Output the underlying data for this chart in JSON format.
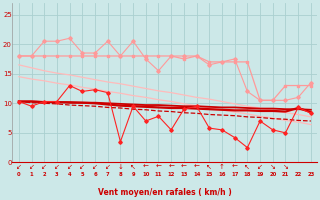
{
  "x": [
    0,
    1,
    2,
    3,
    4,
    5,
    6,
    7,
    8,
    9,
    10,
    11,
    12,
    13,
    14,
    15,
    16,
    17,
    18,
    19,
    20,
    21,
    22,
    23
  ],
  "line_flat_dark": [
    10.3,
    10.3,
    10.2,
    10.2,
    10.2,
    10.1,
    10.1,
    10.0,
    9.9,
    9.8,
    9.7,
    9.7,
    9.6,
    9.5,
    9.5,
    9.4,
    9.3,
    9.3,
    9.2,
    9.1,
    9.1,
    9.0,
    9.0,
    8.9
  ],
  "line_slope_thin": [
    10.3,
    10.1,
    10.0,
    9.9,
    9.7,
    9.6,
    9.5,
    9.3,
    9.2,
    9.0,
    8.9,
    8.7,
    8.6,
    8.4,
    8.3,
    8.1,
    8.0,
    7.9,
    7.7,
    7.6,
    7.4,
    7.3,
    7.1,
    7.0
  ],
  "line_red_jagged": [
    10.3,
    9.5,
    10.3,
    10.3,
    13.0,
    12.0,
    12.3,
    11.8,
    3.5,
    9.5,
    7.0,
    7.8,
    5.5,
    9.0,
    9.5,
    5.8,
    5.5,
    4.2,
    2.5,
    7.0,
    5.5,
    5.0,
    9.3,
    8.3
  ],
  "line_flat_medium": [
    10.3,
    10.3,
    10.2,
    10.2,
    10.1,
    10.1,
    10.0,
    9.8,
    9.6,
    9.5,
    9.4,
    9.3,
    9.2,
    9.2,
    9.1,
    9.0,
    8.9,
    8.8,
    8.8,
    8.7,
    8.7,
    8.6,
    9.2,
    8.5
  ],
  "line_pink_flat": [
    18.0,
    18.0,
    18.0,
    18.0,
    18.0,
    18.0,
    18.0,
    18.0,
    18.0,
    18.0,
    18.0,
    18.0,
    18.0,
    17.5,
    18.0,
    17.0,
    17.0,
    17.0,
    17.0,
    10.5,
    10.5,
    13.0,
    13.0,
    13.0
  ],
  "line_pink_jagged": [
    18.0,
    18.0,
    20.5,
    20.5,
    21.0,
    18.5,
    18.5,
    20.5,
    18.0,
    20.5,
    17.5,
    15.5,
    18.0,
    18.0,
    18.0,
    16.5,
    17.0,
    17.5,
    12.0,
    10.5,
    10.5,
    10.5,
    11.0,
    13.5
  ],
  "line_slope_upper": [
    16.5,
    16.0,
    15.5,
    15.1,
    14.8,
    14.4,
    14.0,
    13.6,
    13.3,
    12.9,
    12.5,
    12.1,
    11.8,
    11.4,
    11.0,
    10.7,
    10.3,
    9.9,
    9.5,
    9.2,
    8.8,
    8.4,
    8.1,
    7.7
  ],
  "line_slope_lower": [
    14.5,
    14.1,
    13.8,
    13.4,
    13.1,
    12.7,
    12.4,
    12.0,
    11.7,
    11.3,
    11.0,
    10.6,
    10.3,
    9.9,
    9.6,
    9.2,
    8.9,
    8.5,
    8.2,
    7.8,
    7.5,
    7.1,
    6.8,
    6.4
  ],
  "background_color": "#cce8e8",
  "grid_color": "#aad0d0",
  "xlabel": "Vent moyen/en rafales ( km/h )",
  "ylim": [
    0,
    27
  ],
  "yticks": [
    0,
    5,
    10,
    15,
    20,
    25
  ],
  "xlim": [
    -0.5,
    23.5
  ],
  "wind_dirs": [
    "↙",
    "↙",
    "↙",
    "↙",
    "↙",
    "↙",
    "↙",
    "↙",
    "↓",
    "↖",
    "←",
    "←",
    "←",
    "←",
    "←",
    "↖",
    "↑",
    "←",
    "↖",
    "↙",
    "↘",
    "↘",
    "",
    ""
  ]
}
